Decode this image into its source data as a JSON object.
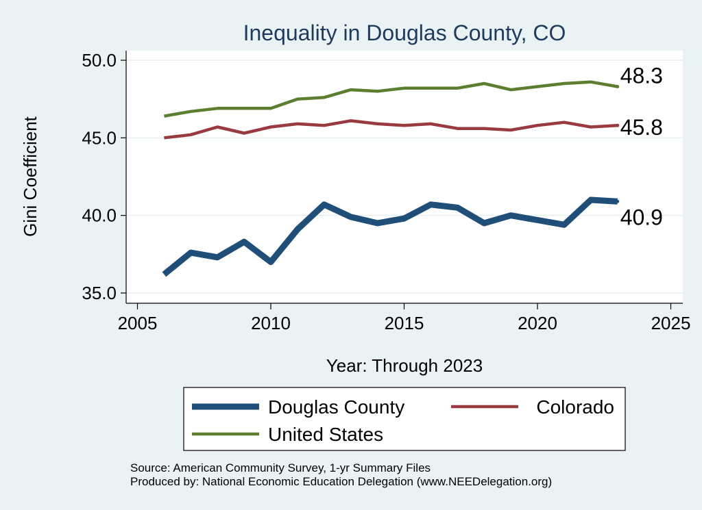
{
  "chart_data": {
    "type": "line",
    "title": "Inequality in Douglas County, CO",
    "xlabel": "Year: Through 2023",
    "ylabel": "Gini Coefficient",
    "xlim": [
      2005,
      2025
    ],
    "ylim": [
      35,
      50
    ],
    "x_ticks": [
      2005,
      2010,
      2015,
      2020,
      2025
    ],
    "x_tick_labels": [
      "2005",
      "2010",
      "2015",
      "2020",
      "2025"
    ],
    "y_ticks": [
      35,
      40,
      45,
      50
    ],
    "y_tick_labels": [
      "35.0",
      "40.0",
      "45.0",
      "50.0"
    ],
    "grid": true,
    "legend_position": "bottom",
    "x": [
      2006,
      2007,
      2008,
      2009,
      2010,
      2011,
      2012,
      2013,
      2014,
      2015,
      2016,
      2017,
      2018,
      2019,
      2020,
      2021,
      2022,
      2023
    ],
    "series": [
      {
        "name": "Douglas County",
        "color": "#1f4e79",
        "width": "thick",
        "values": [
          36.2,
          37.6,
          37.3,
          38.3,
          37.0,
          39.1,
          40.7,
          39.9,
          39.5,
          39.8,
          40.7,
          40.5,
          39.5,
          40.0,
          39.7,
          39.4,
          41.0,
          40.9
        ],
        "end_label": "40.9"
      },
      {
        "name": "Colorado",
        "color": "#983a3f",
        "width": "medium",
        "values": [
          45.0,
          45.2,
          45.7,
          45.3,
          45.7,
          45.9,
          45.8,
          46.1,
          45.9,
          45.8,
          45.9,
          45.6,
          45.6,
          45.5,
          45.8,
          46.0,
          45.7,
          45.8
        ],
        "end_label": "45.8"
      },
      {
        "name": "United States",
        "color": "#5b7f2f",
        "width": "medium",
        "values": [
          46.4,
          46.7,
          46.9,
          46.9,
          46.9,
          47.5,
          47.6,
          48.1,
          48.0,
          48.2,
          48.2,
          48.2,
          48.5,
          48.1,
          48.3,
          48.5,
          48.6,
          48.3
        ],
        "end_label": "48.3"
      }
    ],
    "annotations": [
      "Source: American Community Survey, 1-yr Summary Files",
      "Produced by: National Economic Education Delegation (www.NEEDelegation.org)"
    ]
  }
}
